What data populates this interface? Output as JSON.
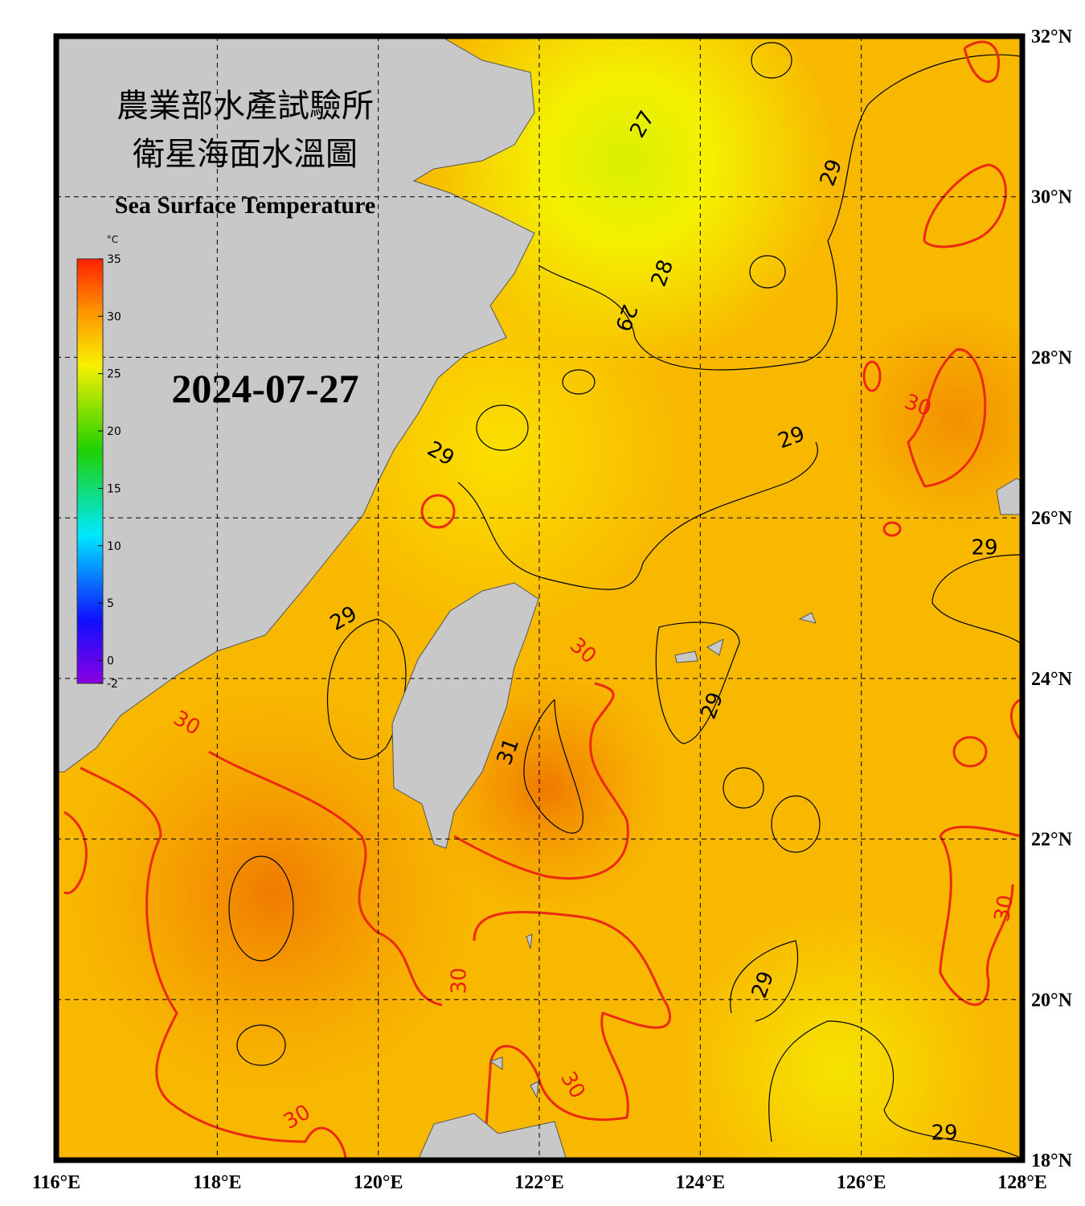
{
  "map": {
    "title_zh_1": "農業部水產試驗所",
    "title_zh_2": "衛星海面水溫圖",
    "title_en": "Sea Surface Temperature",
    "date": "2024-07-27",
    "lonlim": [
      116,
      128
    ],
    "latlim": [
      18,
      32
    ],
    "lonticks": [
      {
        "value": 116,
        "label": "116°E"
      },
      {
        "value": 118,
        "label": "118°E"
      },
      {
        "value": 120,
        "label": "120°E"
      },
      {
        "value": 122,
        "label": "122°E"
      },
      {
        "value": 124,
        "label": "124°E"
      },
      {
        "value": 126,
        "label": "126°E"
      },
      {
        "value": 128,
        "label": "128°E"
      }
    ],
    "latticks": [
      {
        "value": 18,
        "label": "18°N"
      },
      {
        "value": 20,
        "label": "20°N"
      },
      {
        "value": 22,
        "label": "22°N"
      },
      {
        "value": 24,
        "label": "24°N"
      },
      {
        "value": 26,
        "label": "26°N"
      },
      {
        "value": 28,
        "label": "28°N"
      },
      {
        "value": 30,
        "label": "30°N"
      },
      {
        "value": 32,
        "label": "32°N"
      }
    ],
    "colorbar": {
      "unit": "°C",
      "lim": [
        -2,
        35
      ],
      "ticks": [
        35,
        30,
        25,
        20,
        15,
        10,
        5,
        0,
        -2
      ]
    },
    "contour_labels": [
      27,
      28,
      29,
      29,
      29,
      29,
      29,
      29,
      29,
      29,
      29,
      30,
      30,
      30,
      30,
      30,
      30,
      30,
      31
    ]
  }
}
